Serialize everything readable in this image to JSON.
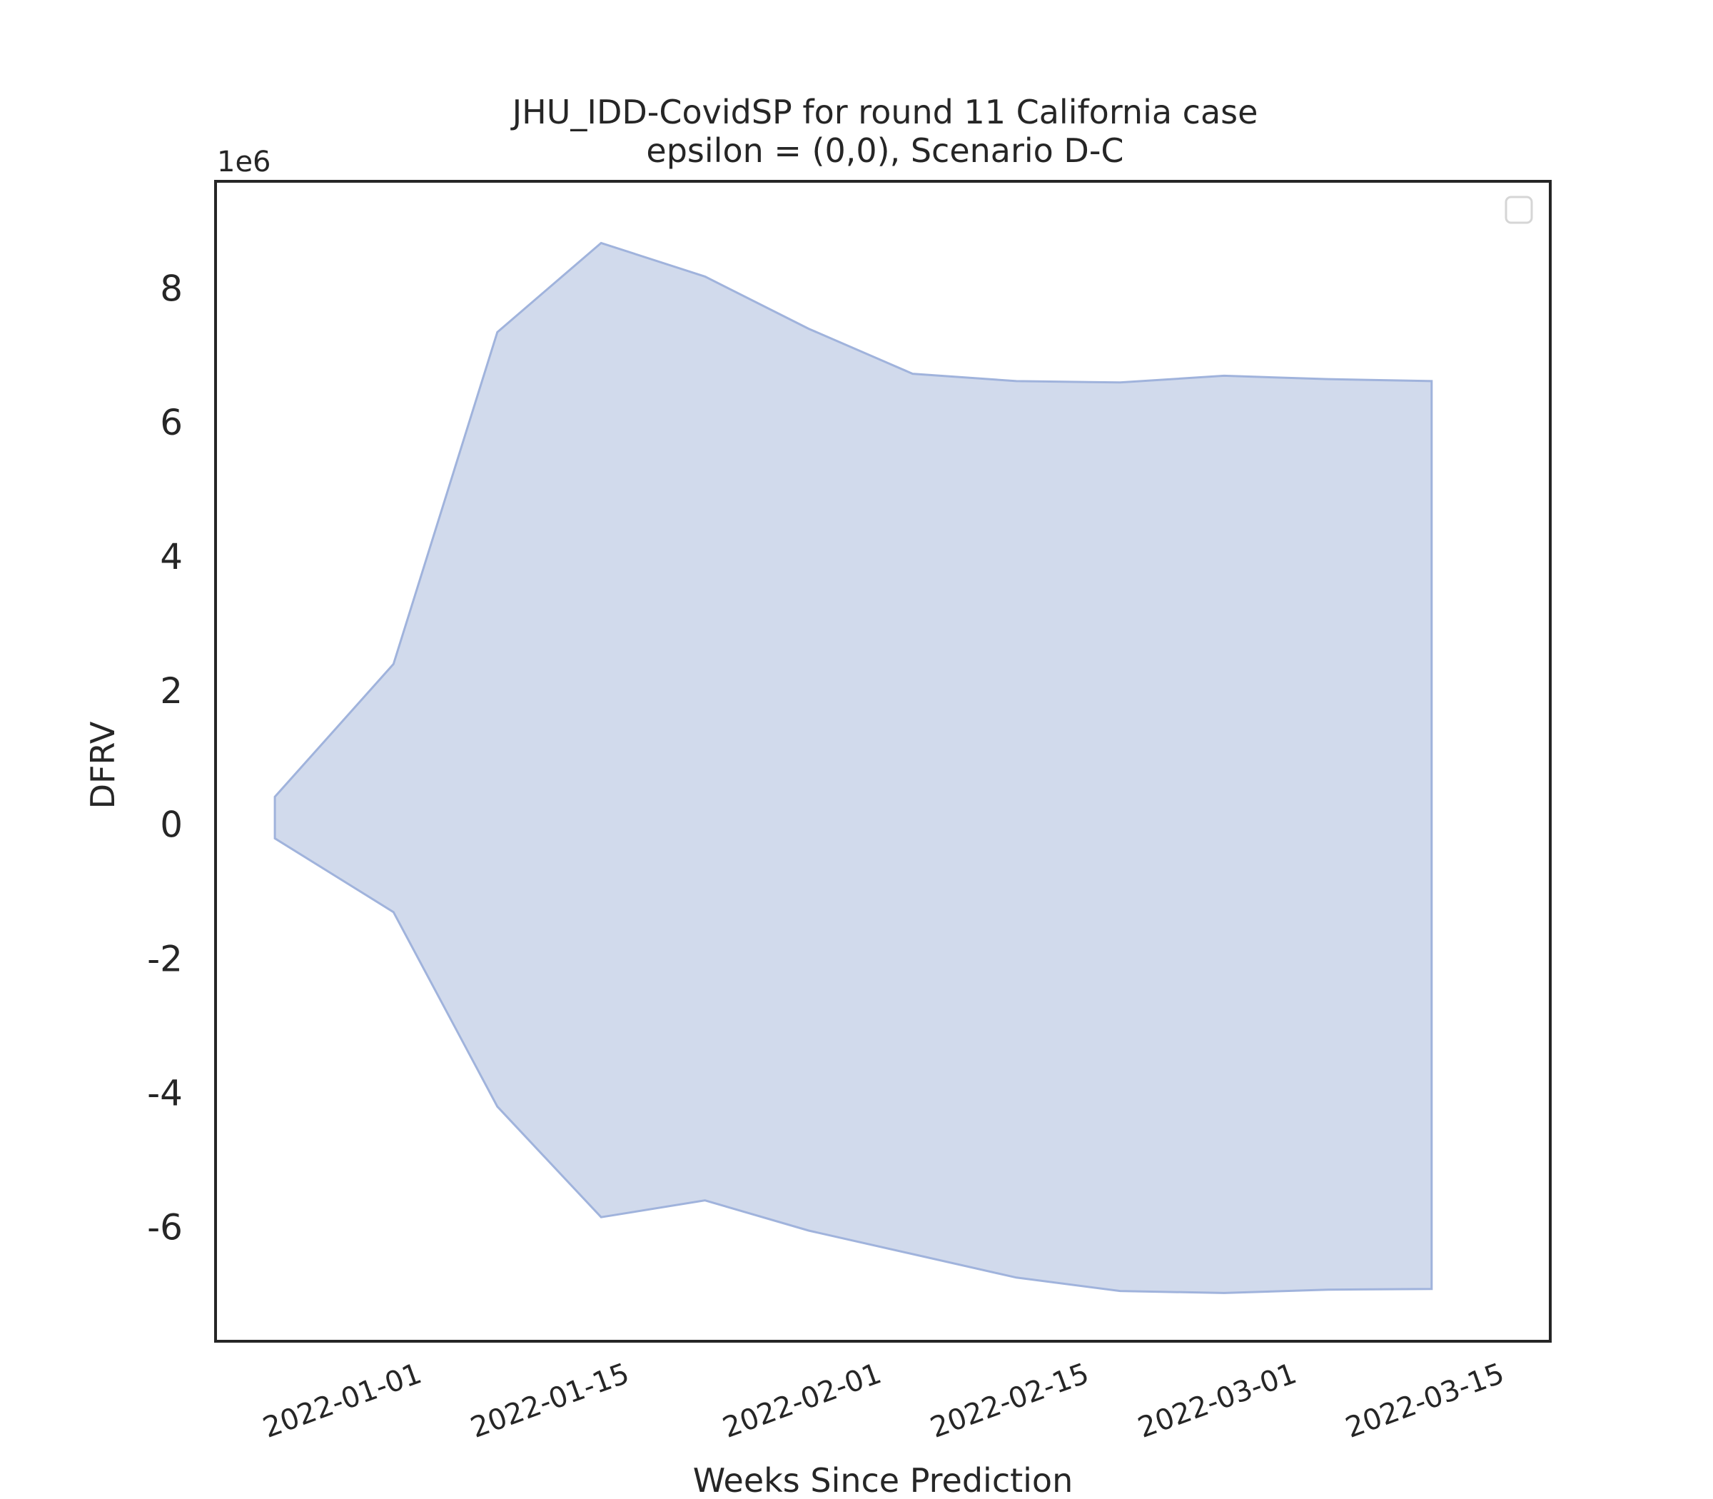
{
  "chart_data": {
    "type": "area",
    "title_lines": [
      "JHU_IDD-CovidSP for round 11 California case",
      "epsilon = (0,0), Scenario D-C"
    ],
    "xlabel": "Weeks Since Prediction",
    "ylabel": "DFRV",
    "y_offset_label": "1e6",
    "y_scale_multiplier": 1000000,
    "x_ticks": [
      "2022-01-01",
      "2022-01-15",
      "2022-02-01",
      "2022-02-15",
      "2022-03-01",
      "2022-03-15"
    ],
    "y_ticks": [
      -6,
      -4,
      -2,
      0,
      2,
      4,
      6,
      8
    ],
    "xlim": [
      "2021-12-20",
      "2022-03-20"
    ],
    "ylim": [
      -7.7,
      9.6
    ],
    "legend": "top-right",
    "legend_entries": [],
    "grid": false,
    "fill_color": "#b3c2e0",
    "fill_edge_color": "#a0b3dc",
    "series": [
      {
        "x": [
          "2021-12-24",
          "2022-01-01",
          "2022-01-08",
          "2022-01-15",
          "2022-01-22",
          "2022-01-29",
          "2022-02-05",
          "2022-02-12",
          "2022-02-19",
          "2022-02-26",
          "2022-03-05",
          "2022-03-12"
        ],
        "lower": [
          -0.2,
          -1.3,
          -4.2,
          -5.85,
          -5.6,
          -6.05,
          -6.4,
          -6.75,
          -6.95,
          -6.98,
          -6.93,
          -6.92
        ],
        "upper": [
          0.42,
          2.4,
          7.35,
          8.68,
          8.18,
          7.4,
          6.73,
          6.62,
          6.6,
          6.7,
          6.65,
          6.62
        ]
      }
    ]
  }
}
